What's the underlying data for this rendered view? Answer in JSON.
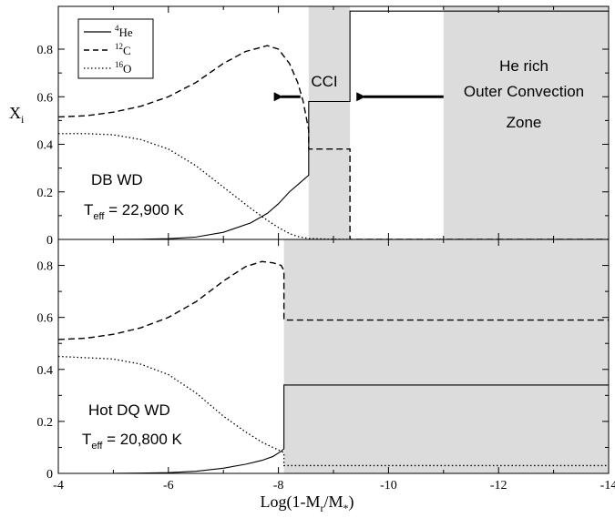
{
  "chart_data": {
    "type": "line",
    "xlabel": "Log(1-M",
    "xlabel_sub1": "r",
    "xlabel_mid": "/M",
    "xlabel_sub2": "*",
    "xlabel_end": ")",
    "ylabel": "X",
    "ylabel_sub": "i",
    "xlim": [
      -4,
      -14
    ],
    "x_ticks": [
      "-4",
      "-6",
      "-8",
      "-10",
      "-12",
      "-14"
    ],
    "legend": {
      "placement": "top-left",
      "entries": [
        {
          "sup": "4",
          "base": "He",
          "style": "solid"
        },
        {
          "sup": "12",
          "base": "C",
          "style": "dashed"
        },
        {
          "sup": "16",
          "base": "O",
          "style": "dotted"
        }
      ]
    },
    "panels": [
      {
        "ylim": [
          0,
          0.98
        ],
        "y_ticks": [
          "0",
          "0.2",
          "0.4",
          "0.6",
          "0.8"
        ],
        "label_line1": "DB WD",
        "label_T": "T",
        "label_sub": "eff",
        "label_value": " = 22,900 K",
        "shaded_regions": [
          {
            "label": "CCI",
            "x_start": -8.55,
            "x_end": -9.3
          },
          {
            "label_lines": [
              "He rich",
              "Outer Convection",
              "Zone"
            ],
            "x_start": -11.0,
            "x_end": -14.0
          }
        ],
        "arrows": [
          {
            "x_from": -8.4,
            "x_to": -8.05,
            "y": 0.6
          },
          {
            "x_from": -11.0,
            "x_to": -9.55,
            "y": 0.6
          }
        ],
        "series": [
          {
            "name": "4He",
            "style": "solid",
            "x": [
              -4,
              -5,
              -5.5,
              -6,
              -6.5,
              -7,
              -7.5,
              -7.8,
              -8.0,
              -8.2,
              -8.35,
              -8.45,
              -8.5,
              -8.55,
              -8.55,
              -9.3,
              -9.3,
              -14
            ],
            "y": [
              0,
              0,
              0.001,
              0.003,
              0.01,
              0.03,
              0.07,
              0.11,
              0.15,
              0.2,
              0.23,
              0.25,
              0.26,
              0.27,
              0.58,
              0.58,
              0.96,
              0.96
            ]
          },
          {
            "name": "12C",
            "style": "dashed",
            "x": [
              -4,
              -4.5,
              -5,
              -5.5,
              -6,
              -6.5,
              -7,
              -7.4,
              -7.8,
              -8.0,
              -8.2,
              -8.35,
              -8.45,
              -8.5,
              -8.55,
              -8.55,
              -9.3,
              -9.3,
              -14
            ],
            "y": [
              0.515,
              0.52,
              0.535,
              0.56,
              0.6,
              0.66,
              0.74,
              0.79,
              0.815,
              0.8,
              0.74,
              0.66,
              0.58,
              0.52,
              0.46,
              0.38,
              0.38,
              0.0,
              0.0
            ]
          },
          {
            "name": "16O",
            "style": "dotted",
            "x": [
              -4,
              -4.5,
              -5,
              -5.5,
              -6,
              -6.5,
              -7,
              -7.5,
              -7.8,
              -8.0,
              -8.2,
              -8.35,
              -8.5,
              -8.55,
              -8.8,
              -9.3,
              -10,
              -14
            ],
            "y": [
              0.445,
              0.445,
              0.44,
              0.42,
              0.38,
              0.31,
              0.22,
              0.13,
              0.08,
              0.05,
              0.025,
              0.012,
              0.006,
              0.004,
              0.002,
              0.0,
              0.0,
              0.0
            ]
          }
        ]
      },
      {
        "ylim": [
          0,
          0.9
        ],
        "y_ticks": [
          "0",
          "0.2",
          "0.4",
          "0.6",
          "0.8"
        ],
        "label_line1": "Hot DQ WD",
        "label_T": "T",
        "label_sub": "eff",
        "label_value": " = 20,800 K",
        "shaded_regions": [
          {
            "x_start": -8.1,
            "x_end": -14.0
          }
        ],
        "series": [
          {
            "name": "4He",
            "style": "solid",
            "x": [
              -4,
              -5,
              -5.5,
              -6,
              -6.5,
              -7,
              -7.4,
              -7.7,
              -7.9,
              -8.05,
              -8.1,
              -8.1,
              -14
            ],
            "y": [
              0,
              0,
              0.001,
              0.003,
              0.008,
              0.02,
              0.035,
              0.05,
              0.065,
              0.085,
              0.095,
              0.34,
              0.34
            ]
          },
          {
            "name": "12C",
            "style": "dashed",
            "x": [
              -4,
              -4.5,
              -5,
              -5.5,
              -6,
              -6.5,
              -7,
              -7.4,
              -7.7,
              -7.9,
              -8.05,
              -8.1,
              -8.1,
              -14
            ],
            "y": [
              0.515,
              0.52,
              0.535,
              0.56,
              0.6,
              0.66,
              0.74,
              0.795,
              0.815,
              0.81,
              0.8,
              0.78,
              0.59,
              0.59
            ]
          },
          {
            "name": "16O",
            "style": "dotted",
            "x": [
              -4,
              -4.5,
              -5,
              -5.5,
              -6,
              -6.5,
              -7,
              -7.4,
              -7.7,
              -7.9,
              -8.05,
              -8.1,
              -8.1,
              -14
            ],
            "y": [
              0.45,
              0.445,
              0.44,
              0.42,
              0.38,
              0.31,
              0.22,
              0.16,
              0.12,
              0.1,
              0.085,
              0.08,
              0.03,
              0.03
            ]
          }
        ]
      }
    ]
  }
}
